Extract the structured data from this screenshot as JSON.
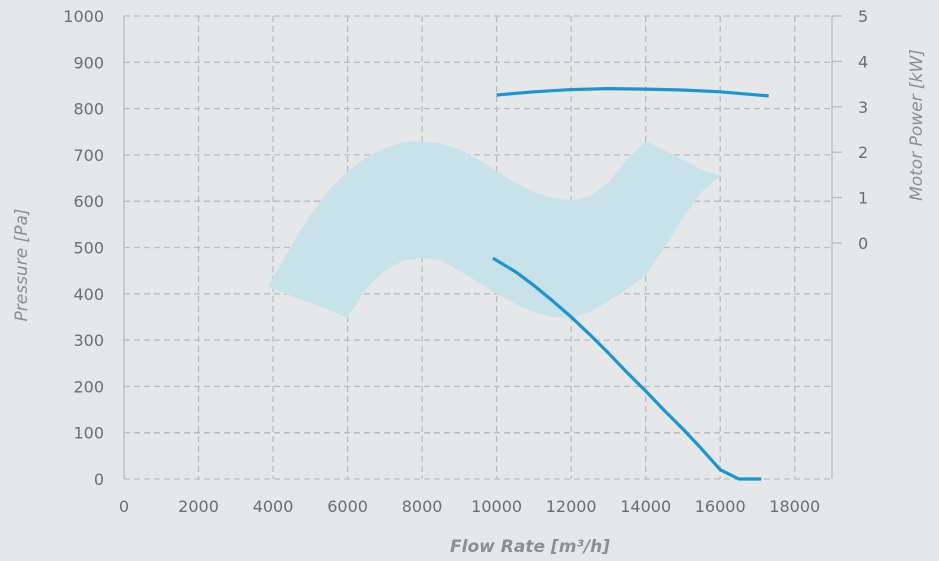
{
  "chart_data": {
    "type": "line",
    "xlabel": "Flow Rate [m³/h]",
    "ylabel": "Pressure [Pa]",
    "y2label": "Motor Power [kW]",
    "xlim": [
      0,
      19000
    ],
    "ylim": [
      0,
      1000
    ],
    "y2lim": [
      0,
      5
    ],
    "x_ticks": [
      "0",
      "2000",
      "4000",
      "6000",
      "8000",
      "10000",
      "12000",
      "14000",
      "16000",
      "18000"
    ],
    "y_ticks": [
      "0",
      "100",
      "200",
      "300",
      "400",
      "500",
      "600",
      "700",
      "800",
      "900",
      "1000"
    ],
    "y2_ticks": [
      "0",
      "1",
      "2",
      "3",
      "4",
      "5"
    ],
    "grid": true,
    "series": [
      {
        "type": "line",
        "axis": "y2",
        "color": "#1a96d4",
        "x": [
          10000,
          11000,
          12000,
          13000,
          14000,
          15000,
          16000,
          17300
        ],
        "y": [
          3.26,
          3.33,
          3.38,
          3.4,
          3.39,
          3.37,
          3.33,
          3.24
        ]
      },
      {
        "type": "line",
        "axis": "y",
        "color": "#1a96d4",
        "x": [
          9900,
          10500,
          11000,
          11500,
          12000,
          12500,
          13000,
          13500,
          14000,
          14500,
          15000,
          15500,
          16000,
          16500,
          17000,
          17100
        ],
        "y": [
          477,
          448,
          418,
          385,
          350,
          312,
          272,
          230,
          190,
          148,
          108,
          65,
          20,
          -25,
          -70,
          0
        ]
      },
      {
        "type": "area",
        "axis": "y",
        "color": "#c8e2ea",
        "upper": {
          "x": [
            3900,
            4500,
            5000,
            5500,
            6000,
            6500,
            7000,
            7500,
            8000,
            8500,
            9000,
            9500,
            10000,
            10500,
            11000,
            11500,
            12000,
            12500,
            13000,
            13500,
            14000,
            14500,
            15000,
            15500,
            16000
          ],
          "y": [
            420,
            505,
            570,
            625,
            665,
            695,
            715,
            728,
            730,
            725,
            712,
            690,
            665,
            640,
            620,
            607,
            602,
            610,
            640,
            690,
            730,
            710,
            690,
            668,
            655
          ]
        },
        "lower": {
          "x": [
            16000,
            15500,
            15000,
            14500,
            14000,
            13500,
            13000,
            12500,
            12000,
            11500,
            11000,
            10500,
            10000,
            9500,
            9000,
            8500,
            8000,
            7500,
            7000,
            6500,
            6000,
            5500,
            5000,
            4500,
            3900
          ],
          "y": [
            655,
            620,
            565,
            500,
            440,
            410,
            385,
            360,
            348,
            350,
            360,
            378,
            400,
            425,
            450,
            472,
            478,
            472,
            450,
            412,
            348,
            365,
            380,
            395,
            415
          ]
        }
      }
    ]
  }
}
